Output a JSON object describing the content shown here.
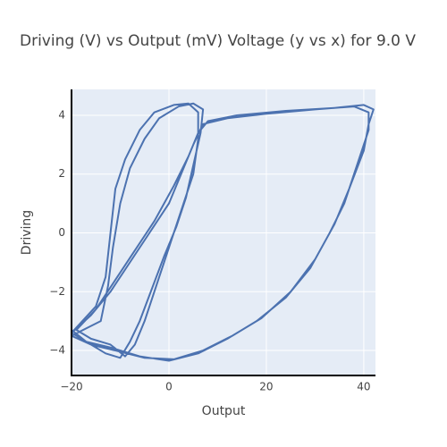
{
  "chart_data": {
    "type": "line",
    "title": "Driving (V) vs Output (mV) Voltage (y vs x) for 9.0 V",
    "x_label": "Output",
    "y_label": "Driving",
    "color": "#4c72b0",
    "grid": true,
    "xlim": [
      -20,
      42.4
    ],
    "ylim": [
      -4.85,
      4.88
    ],
    "xticks": [
      {
        "value": -20,
        "label": "−20"
      },
      0,
      20,
      40
    ],
    "yticks": [
      {
        "value": -4,
        "label": "−4"
      },
      {
        "value": -2,
        "label": "−2"
      },
      0,
      2,
      4
    ],
    "x": [
      -20,
      -16,
      -12,
      -8,
      -4,
      0,
      3,
      5,
      7,
      12,
      20,
      30,
      38,
      41,
      41,
      39,
      36,
      33,
      29,
      24,
      18,
      12,
      6,
      0,
      -6,
      -12,
      -17,
      -20,
      -15,
      -13,
      -12,
      -11,
      -9,
      -6,
      -3,
      1,
      4,
      6,
      6,
      5,
      3,
      1,
      -1,
      -3,
      -5,
      -7,
      -9,
      -12,
      -16,
      -19,
      -15,
      -11,
      -7,
      -3,
      1,
      4,
      6,
      8,
      14,
      24,
      34,
      40,
      42,
      41,
      40,
      37,
      34,
      30,
      25,
      19,
      13,
      7,
      1,
      -5,
      -11,
      -16,
      -20,
      -14,
      -12.5,
      -11.5,
      -10,
      -8,
      -5,
      -2,
      2,
      5,
      7,
      6.5,
      5,
      3.5,
      1.5,
      -1,
      -3.5,
      -6,
      -8,
      -10,
      -13,
      -17,
      -20
    ],
    "values": [
      -3.4,
      -2.8,
      -2.0,
      -1.0,
      0.0,
      1.0,
      2.2,
      3.0,
      3.7,
      3.9,
      4.05,
      4.2,
      4.3,
      4.1,
      3.5,
      2.5,
      1.0,
      0.0,
      -1.2,
      -2.2,
      -3.0,
      -3.6,
      -4.1,
      -4.35,
      -4.2,
      -3.9,
      -3.7,
      -3.4,
      -2.5,
      -1.5,
      0,
      1.5,
      2.5,
      3.5,
      4.1,
      4.35,
      4.4,
      4.1,
      3.2,
      2.0,
      1.0,
      0,
      -1,
      -2,
      -3,
      -3.8,
      -4.2,
      -3.8,
      -3.6,
      -3.3,
      -2.6,
      -1.6,
      -0.6,
      0.4,
      1.6,
      2.6,
      3.4,
      3.8,
      4.0,
      4.15,
      4.25,
      4.35,
      4.2,
      3.7,
      2.8,
      1.5,
      0.3,
      -0.9,
      -2.0,
      -2.9,
      -3.5,
      -4.0,
      -4.3,
      -4.25,
      -4.0,
      -3.8,
      -3.5,
      -3.0,
      -1.8,
      -0.5,
      1.0,
      2.2,
      3.2,
      3.9,
      4.3,
      4.4,
      4.2,
      3.4,
      2.3,
      1.2,
      0.2,
      -0.8,
      -1.9,
      -3.0,
      -3.7,
      -4.25,
      -4.1,
      -3.7,
      -3.3
    ]
  }
}
